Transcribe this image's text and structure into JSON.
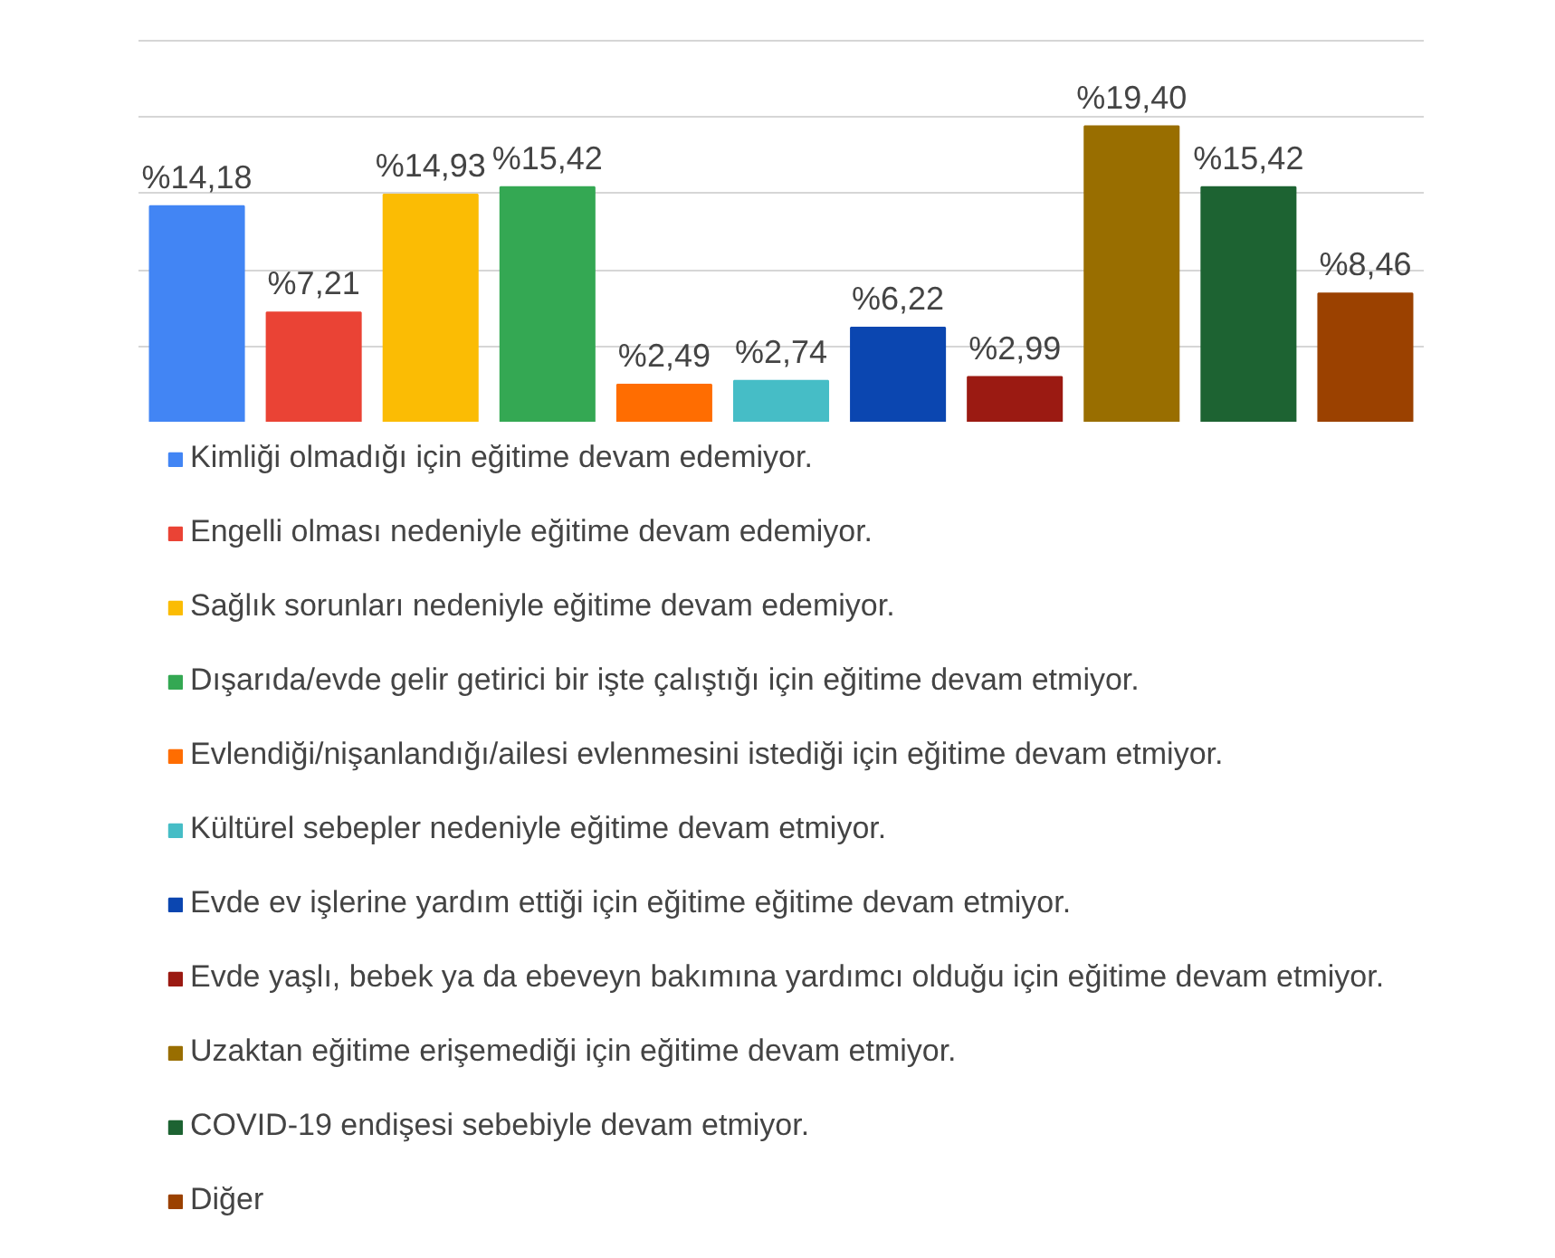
{
  "chart_data": {
    "type": "bar",
    "stacked": true,
    "categories": [
      null,
      null,
      null,
      null,
      null,
      null,
      null,
      null,
      null,
      null,
      null
    ],
    "series": [
      {
        "name": "Kimliği olmadığı için eğitime devam edemiyor.",
        "color": "#4285f4",
        "values": [
          14.18,
          null,
          null,
          null,
          null,
          null,
          null,
          null,
          null,
          null,
          null
        ],
        "value_labels": [
          "%14,18",
          null,
          null,
          null,
          null,
          null,
          null,
          null,
          null,
          null,
          null
        ]
      },
      {
        "name": "Engelli olması nedeniyle eğitime devam edemiyor.",
        "color": "#ea4335",
        "values": [
          null,
          7.21,
          null,
          null,
          null,
          null,
          null,
          null,
          null,
          null,
          null
        ],
        "value_labels": [
          null,
          "%7,21",
          null,
          null,
          null,
          null,
          null,
          null,
          null,
          null,
          null
        ]
      },
      {
        "name": "Sağlık sorunları nedeniyle eğitime devam edemiyor.",
        "color": "#fbbc04",
        "values": [
          null,
          null,
          14.93,
          null,
          null,
          null,
          null,
          null,
          null,
          null,
          null
        ],
        "value_labels": [
          null,
          null,
          "%14,93",
          null,
          null,
          null,
          null,
          null,
          null,
          null,
          null
        ]
      },
      {
        "name": "Dışarıda/evde gelir getirici bir işte çalıştığı için eğitime devam etmiyor.",
        "color": "#34a853",
        "values": [
          null,
          null,
          null,
          15.42,
          null,
          null,
          null,
          null,
          null,
          null,
          null
        ],
        "value_labels": [
          null,
          null,
          null,
          "%15,42",
          null,
          null,
          null,
          null,
          null,
          null,
          null
        ]
      },
      {
        "name": "Evlendiği/nişanlandığı/ailesi evlenmesini istediği için eğitime devam etmiyor.",
        "color": "#ff6d01",
        "values": [
          null,
          null,
          null,
          null,
          2.49,
          null,
          null,
          null,
          null,
          null,
          null
        ],
        "value_labels": [
          null,
          null,
          null,
          null,
          "%2,49",
          null,
          null,
          null,
          null,
          null,
          null
        ]
      },
      {
        "name": "Kültürel sebepler nedeniyle eğitime devam etmiyor.",
        "color": "#46bdc6",
        "values": [
          null,
          null,
          null,
          null,
          null,
          2.74,
          null,
          null,
          null,
          null,
          null
        ],
        "value_labels": [
          null,
          null,
          null,
          null,
          null,
          "%2,74",
          null,
          null,
          null,
          null,
          null
        ]
      },
      {
        "name": "Evde ev işlerine yardım ettiği için eğitime eğitime devam etmiyor.",
        "color": "#0b46b0",
        "values": [
          null,
          null,
          null,
          null,
          null,
          null,
          6.22,
          null,
          null,
          null,
          null
        ],
        "value_labels": [
          null,
          null,
          null,
          null,
          null,
          null,
          "%6,22",
          null,
          null,
          null,
          null
        ]
      },
      {
        "name": "Evde yaşlı, bebek ya da ebeveyn bakımına yardımcı olduğu için eğitime devam etmiyor.",
        "color": "#9b1a12",
        "values": [
          null,
          null,
          null,
          null,
          null,
          null,
          null,
          2.99,
          null,
          null,
          null
        ],
        "value_labels": [
          null,
          null,
          null,
          null,
          null,
          null,
          null,
          "%2,99",
          null,
          null,
          null
        ]
      },
      {
        "name": "Uzaktan eğitime erişemediği için eğitime devam etmiyor.",
        "color": "#996e00",
        "values": [
          null,
          null,
          null,
          null,
          null,
          null,
          null,
          null,
          19.4,
          null,
          null
        ],
        "value_labels": [
          null,
          null,
          null,
          null,
          null,
          null,
          null,
          null,
          "%19,40",
          null,
          null
        ]
      },
      {
        "name": "COVID-19 endişesi sebebiyle devam etmiyor.",
        "color": "#1d6332",
        "values": [
          null,
          null,
          null,
          null,
          null,
          null,
          null,
          null,
          null,
          15.42,
          null
        ],
        "value_labels": [
          null,
          null,
          null,
          null,
          null,
          null,
          null,
          null,
          null,
          "%15,42",
          null
        ]
      },
      {
        "name": "Diğer",
        "color": "#9b4100",
        "values": [
          null,
          null,
          null,
          null,
          null,
          null,
          null,
          null,
          null,
          null,
          8.46
        ],
        "value_labels": [
          null,
          null,
          null,
          null,
          null,
          null,
          null,
          null,
          null,
          null,
          "%8,46"
        ]
      }
    ],
    "ylim": [
      0,
      25
    ],
    "yticks": [
      {
        "value": 5,
        "label": null
      },
      {
        "value": 10,
        "label": null
      },
      {
        "value": 15,
        "label": null
      },
      {
        "value": 20,
        "label": null
      },
      {
        "value": 25,
        "label": null
      }
    ],
    "grid": "y",
    "legend": "bottom",
    "tick_labels": false
  }
}
